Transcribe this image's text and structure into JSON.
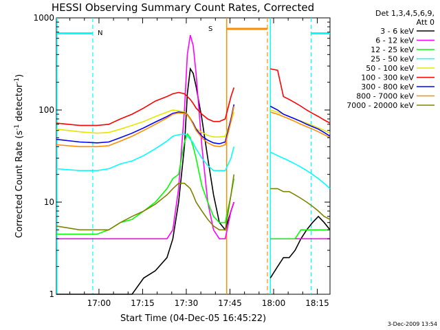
{
  "chart_data": {
    "type": "line",
    "title": "HESSI Observing Summary Count Rates, Corrected",
    "xlabel": "Start Time (04-Dec-05 16:45:22)",
    "ylabel": "Corrected Count Rate (s",
    "ylabel_sup1": "-1",
    "ylabel_mid": " detector",
    "ylabel_sup2": "-1",
    "ylabel_end": ")",
    "y_scale": "log",
    "ylim": [
      1,
      1000
    ],
    "y_ticks": [
      {
        "v": 1,
        "label": "1"
      },
      {
        "v": 10,
        "label": "10"
      },
      {
        "v": 100,
        "label": "100"
      },
      {
        "v": 1000,
        "label": "1000"
      }
    ],
    "xlim_min": [
      0,
      94
    ],
    "x_ticks": [
      {
        "v": 14.63,
        "label": "17:00"
      },
      {
        "v": 29.63,
        "label": "17:15"
      },
      {
        "v": 44.63,
        "label": "17:30"
      },
      {
        "v": 59.63,
        "label": "17:45"
      },
      {
        "v": 74.63,
        "label": "18:00"
      },
      {
        "v": 89.63,
        "label": "18:15"
      }
    ],
    "legend_header": [
      "Det 1,3,4,5,6,9,",
      "Att 0"
    ],
    "legend_position": "right",
    "series": [
      {
        "name": "3 - 6 keV",
        "color": "#000000"
      },
      {
        "name": "6 - 12 keV",
        "color": "#ff00ff"
      },
      {
        "name": "12 - 25 keV",
        "color": "#00ff00"
      },
      {
        "name": "25 - 50 keV",
        "color": "#00ffff"
      },
      {
        "name": "50 - 100 keV",
        "color": "#e6e600"
      },
      {
        "name": "100 - 300 keV",
        "color": "#ff0000"
      },
      {
        "name": "300 - 800 keV",
        "color": "#0000ff"
      },
      {
        "name": "800 - 7000 keV",
        "color": "#ff8c00"
      },
      {
        "name": "7000 - 20000 keV",
        "color": "#808000"
      }
    ],
    "segments": [
      {
        "x": [
          0,
          8,
          14,
          18,
          22,
          26,
          30,
          34,
          38,
          40,
          42,
          44,
          45,
          46,
          47,
          48,
          50,
          52,
          54,
          56,
          58,
          60,
          61
        ],
        "vals": {
          "3 - 6 keV": [
            1,
            1,
            1,
            1,
            1,
            1,
            1.5,
            1.8,
            2.5,
            4,
            10,
            40,
            150,
            280,
            250,
            180,
            80,
            30,
            12,
            6,
            5,
            8,
            10
          ],
          "6 - 12 keV": [
            4,
            4,
            4,
            4,
            4,
            4,
            4,
            4,
            4,
            5,
            14,
            100,
            400,
            650,
            500,
            250,
            40,
            10,
            5,
            4,
            4,
            8,
            10
          ],
          "12 - 25 keV": [
            4.5,
            4.5,
            4.5,
            5,
            6,
            6.5,
            8,
            10,
            14,
            18,
            20,
            45,
            55,
            50,
            40,
            30,
            15,
            10,
            7,
            6,
            6,
            12,
            18
          ],
          "25 - 50 keV": [
            23,
            22,
            22,
            23,
            26,
            28,
            32,
            38,
            46,
            52,
            54,
            55,
            52,
            48,
            44,
            38,
            30,
            25,
            22,
            22,
            22,
            30,
            40
          ],
          "50 - 100 keV": [
            62,
            58,
            56,
            57,
            62,
            68,
            75,
            85,
            95,
            100,
            98,
            95,
            90,
            82,
            72,
            63,
            57,
            53,
            51,
            51,
            52,
            75,
            95
          ],
          "100 - 300 keV": [
            72,
            68,
            68,
            70,
            80,
            90,
            105,
            125,
            140,
            150,
            155,
            150,
            140,
            130,
            118,
            105,
            90,
            80,
            75,
            75,
            80,
            140,
            175
          ],
          "300 - 800 keV": [
            48,
            45,
            44,
            45,
            50,
            56,
            64,
            74,
            85,
            92,
            95,
            93,
            89,
            80,
            72,
            62,
            52,
            47,
            44,
            43,
            45,
            80,
            115
          ],
          "800 - 7000 keV": [
            42,
            40,
            40,
            41,
            46,
            52,
            60,
            70,
            82,
            90,
            93,
            92,
            88,
            80,
            70,
            60,
            50,
            44,
            41,
            40,
            42,
            75,
            110
          ],
          "7000 - 20000 keV": [
            5.5,
            5,
            5,
            5,
            6,
            7,
            8,
            9.5,
            12,
            14,
            16,
            16,
            15,
            14,
            12,
            10,
            8,
            6.5,
            5.5,
            5,
            5,
            12,
            20
          ]
        }
      },
      {
        "x": [
          73.5,
          76,
          78,
          80,
          82,
          84,
          86,
          88,
          90,
          92,
          94
        ],
        "vals": {
          "3 - 6 keV": [
            1.5,
            2,
            2.5,
            2.5,
            3,
            4,
            5,
            6,
            7,
            6,
            5
          ],
          "6 - 12 keV": [
            4,
            4,
            4,
            4,
            4,
            4,
            4,
            4,
            4,
            4,
            4
          ],
          "12 - 25 keV": [
            4,
            4,
            4,
            4,
            4,
            5,
            5,
            5,
            5,
            5,
            5
          ],
          "25 - 50 keV": [
            35,
            32,
            30,
            28,
            26,
            24,
            22,
            20,
            18,
            16,
            14
          ],
          "50 - 100 keV": [
            100,
            95,
            90,
            85,
            80,
            76,
            72,
            68,
            64,
            60,
            56
          ],
          "100 - 300 keV": [
            280,
            270,
            140,
            130,
            120,
            110,
            100,
            92,
            85,
            78,
            72
          ],
          "300 - 800 keV": [
            110,
            100,
            90,
            85,
            80,
            75,
            70,
            66,
            62,
            57,
            52
          ],
          "800 - 7000 keV": [
            95,
            90,
            85,
            80,
            75,
            70,
            66,
            62,
            58,
            54,
            50
          ],
          "7000 - 20000 keV": [
            14,
            14,
            13,
            13,
            12,
            11,
            10,
            9,
            8,
            7,
            6.5
          ]
        }
      }
    ],
    "markers": [
      {
        "label": "N",
        "color": "#00ffff"
      },
      {
        "label": "S",
        "color": "#ff8c00"
      }
    ],
    "timestamp": "3-Dec-2009 13:54"
  }
}
